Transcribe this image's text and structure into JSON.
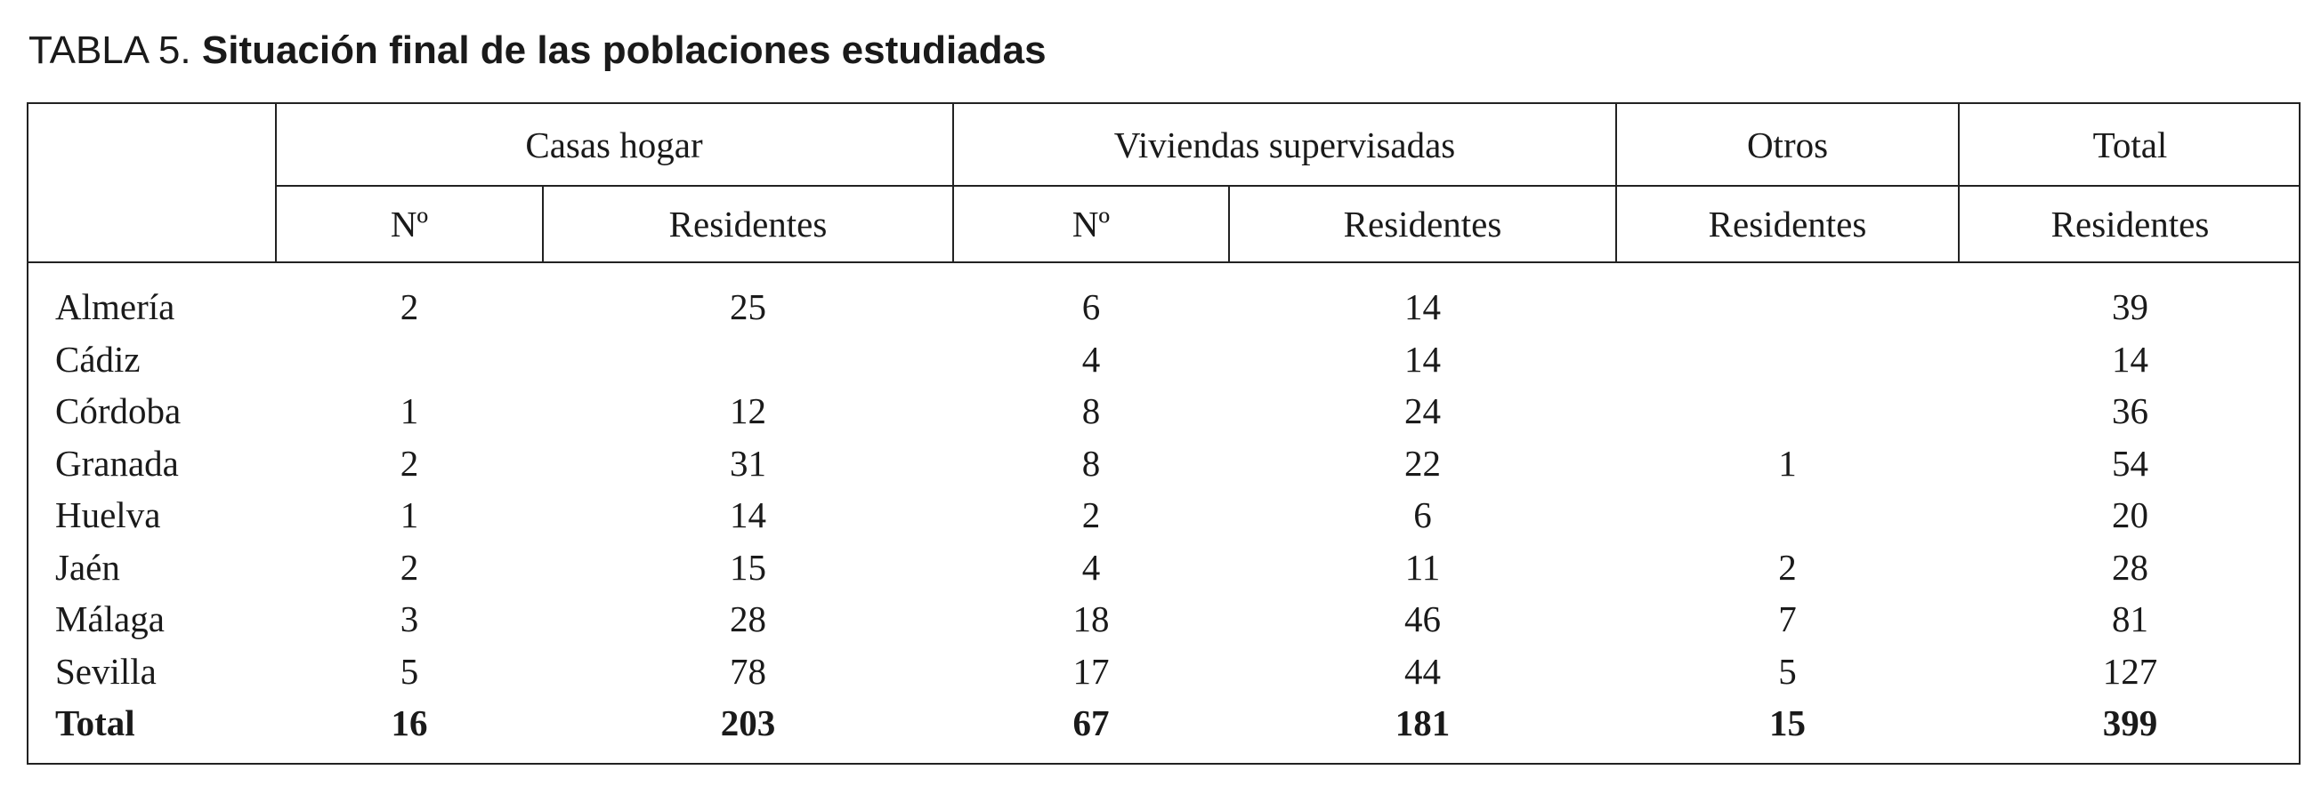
{
  "table": {
    "label": "TABLA 5.",
    "title": "Situación final de las poblaciones estudiadas",
    "group_headers": [
      "Casas hogar",
      "Viviendas supervisadas",
      "Otros",
      "Total"
    ],
    "sub_headers": [
      "Nº",
      "Residentes",
      "Nº",
      "Residentes",
      "Residentes",
      "Residentes"
    ],
    "rows": [
      {
        "name": "Almería",
        "cells": [
          "2",
          "25",
          "6",
          "14",
          "",
          "39"
        ]
      },
      {
        "name": "Cádiz",
        "cells": [
          "",
          "",
          "4",
          "14",
          "",
          "14"
        ]
      },
      {
        "name": "Córdoba",
        "cells": [
          "1",
          "12",
          "8",
          "24",
          "",
          "36"
        ]
      },
      {
        "name": "Granada",
        "cells": [
          "2",
          "31",
          "8",
          "22",
          "1",
          "54"
        ]
      },
      {
        "name": "Huelva",
        "cells": [
          "1",
          "14",
          "2",
          "6",
          "",
          "20"
        ]
      },
      {
        "name": "Jaén",
        "cells": [
          "2",
          "15",
          "4",
          "11",
          "2",
          "28"
        ]
      },
      {
        "name": "Málaga",
        "cells": [
          "3",
          "28",
          "18",
          "46",
          "7",
          "81"
        ]
      },
      {
        "name": "Sevilla",
        "cells": [
          "5",
          "78",
          "17",
          "44",
          "5",
          "127"
        ]
      }
    ],
    "total": {
      "name": "Total",
      "cells": [
        "16",
        "203",
        "67",
        "181",
        "15",
        "399"
      ]
    }
  }
}
